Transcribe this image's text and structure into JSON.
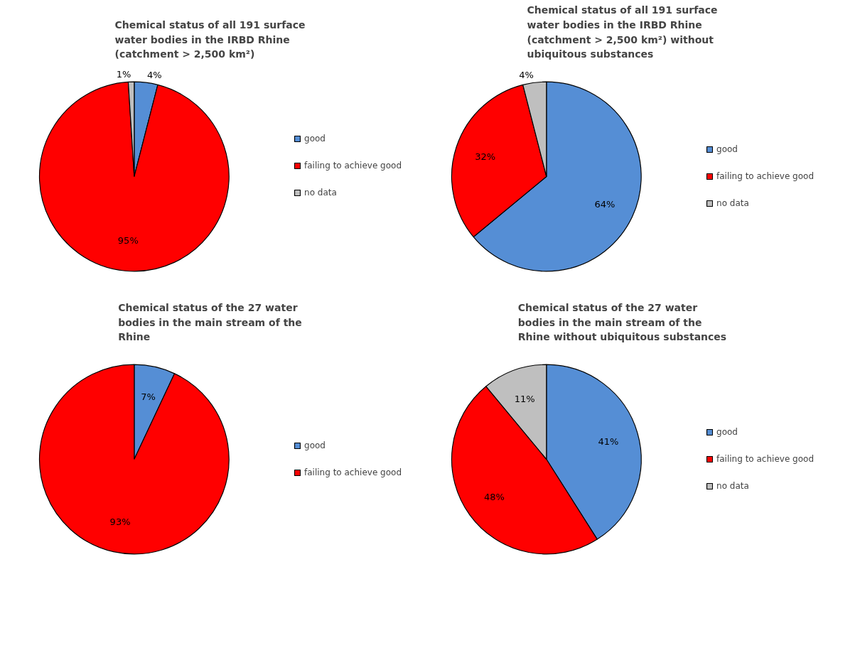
{
  "chart_data": [
    {
      "type": "pie",
      "title": "Chemical status of all 191 surface water bodies in the IRBD Rhine (catchment > 2,500 km²)",
      "categories": [
        "good",
        "failing to achieve good",
        "no data"
      ],
      "values": [
        4,
        95,
        1
      ],
      "value_labels": [
        "4%",
        "95%",
        "1%"
      ],
      "colors": [
        "#558ed5",
        "#ff0000",
        "#bfbfbf"
      ],
      "legend": "right"
    },
    {
      "type": "pie",
      "title": "Chemical status of all 191 surface water bodies in the IRBD Rhine (catchment > 2,500 km²) without ubiquitous substances",
      "categories": [
        "good",
        "failing to achieve good",
        "no data"
      ],
      "values": [
        64,
        32,
        4
      ],
      "value_labels": [
        "64%",
        "32%",
        "4%"
      ],
      "colors": [
        "#558ed5",
        "#ff0000",
        "#bfbfbf"
      ],
      "legend": "right"
    },
    {
      "type": "pie",
      "title": "Chemical status of the 27 water bodies in the main stream of the Rhine",
      "categories": [
        "good",
        "failing to achieve good"
      ],
      "values": [
        7,
        93
      ],
      "value_labels": [
        "7%",
        "93%"
      ],
      "colors": [
        "#558ed5",
        "#ff0000"
      ],
      "legend": "right"
    },
    {
      "type": "pie",
      "title": "Chemical status of the 27 water bodies in the main stream of the Rhine without ubiquitous substances",
      "categories": [
        "good",
        "failing to achieve good",
        "no data"
      ],
      "values": [
        41,
        48,
        11
      ],
      "value_labels": [
        "41%",
        "48%",
        "11%"
      ],
      "colors": [
        "#558ed5",
        "#ff0000",
        "#bfbfbf"
      ],
      "legend": "right"
    }
  ]
}
